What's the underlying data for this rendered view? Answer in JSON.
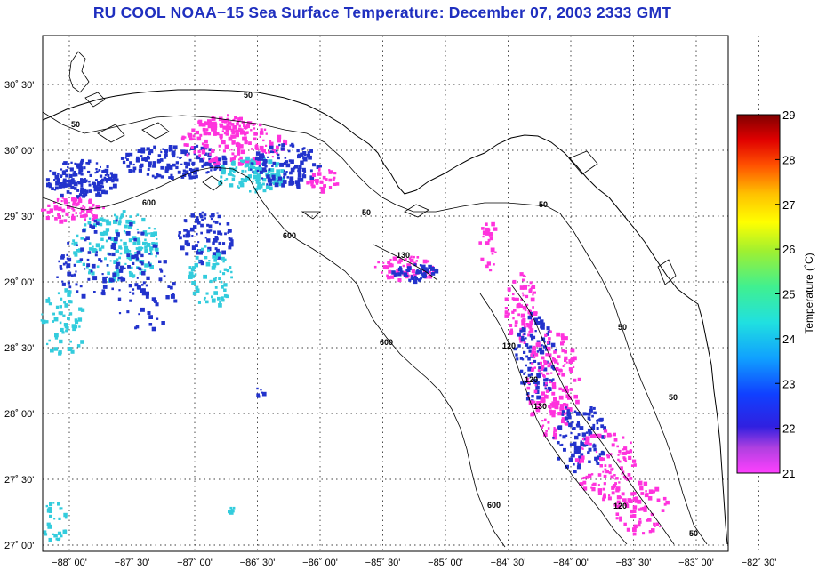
{
  "title": "RU COOL  NOAA−15  Sea Surface Temperature:  December 07, 2003 2333 GMT",
  "axes": {
    "x_ticks": [
      "−88˚ 00'",
      "−87˚ 30'",
      "−87˚ 00'",
      "−86˚ 30'",
      "−86˚ 00'",
      "−85˚ 30'",
      "−85˚ 00'",
      "−84˚ 30'",
      "−84˚ 00'",
      "−83˚ 30'",
      "−83˚ 00'",
      "−82˚ 30'"
    ],
    "y_ticks": [
      "30˚ 30'",
      "30˚ 00'",
      "29˚ 30'",
      "29˚ 00'",
      "28˚ 30'",
      "28˚ 00'",
      "27˚ 30'",
      "27˚ 00'"
    ]
  },
  "colorbar": {
    "title": "Temperature (˚C)",
    "ticks": [
      "29",
      "28",
      "27",
      "26",
      "25",
      "24",
      "23",
      "22",
      "21"
    ]
  },
  "contour_labels": [
    "50",
    "50",
    "50",
    "50",
    "600",
    "600",
    "600",
    "600",
    "130",
    "120",
    "130",
    "120",
    "120",
    "50",
    "50",
    "50"
  ],
  "colors": {
    "title": "#1f2fbf",
    "coast": "#000000",
    "grid": "#000000",
    "sst_cold": "#ff33dd",
    "sst_mid": "#2233cc",
    "sst_warm": "#33ccdd"
  }
}
